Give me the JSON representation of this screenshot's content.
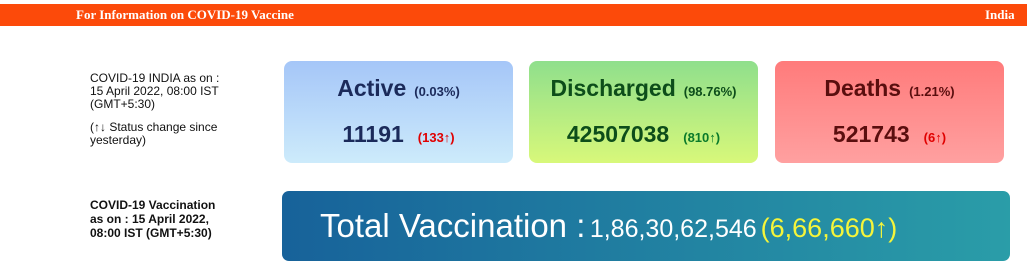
{
  "header": {
    "title": "For Information on COVID-19 Vaccine",
    "country": "India"
  },
  "status": {
    "lines": [
      "COVID-19 INDIA as on :",
      "15 April 2022, 08:00 IST",
      "(GMT+5:30)"
    ],
    "note": [
      "(↑↓ Status change since",
      "yesterday)"
    ]
  },
  "cards": [
    {
      "label": "Active",
      "percent": "(0.03%)",
      "value": "11191",
      "change": "(133↑)"
    },
    {
      "label": "Discharged",
      "percent": "(98.76%)",
      "value": "42507038",
      "change": "(810↑)"
    },
    {
      "label": "Deaths",
      "percent": "(1.21%)",
      "value": "521743",
      "change": "(6↑)"
    }
  ],
  "vaccination": {
    "lines": [
      "COVID-19 Vaccination",
      "as on : 15 April 2022,",
      "08:00 IST (GMT+5:30)"
    ],
    "label": "Total Vaccination :",
    "total": "1,86,30,62,546",
    "change": "(6,66,660↑)"
  }
}
